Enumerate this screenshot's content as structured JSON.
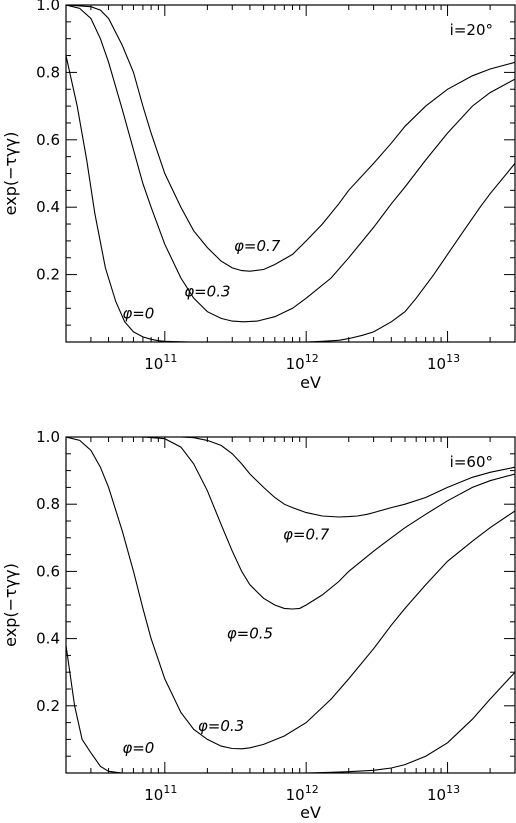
{
  "chart_data": [
    {
      "type": "line",
      "panel": "top",
      "annotation": "i=20°",
      "xlabel": "eV",
      "ylabel": "exp(−τγγ)",
      "xscale": "log",
      "xlim": [
        20000000000.0,
        30000000000000.0
      ],
      "ylim": [
        0,
        1.0
      ],
      "xticks_major": [
        100000000000.0,
        1000000000000.0,
        10000000000000.0
      ],
      "xtick_labels": [
        {
          "base": "10",
          "exp": "11"
        },
        {
          "base": "10",
          "exp": "12"
        },
        {
          "base": "10",
          "exp": "13"
        }
      ],
      "yticks": [
        0.2,
        0.4,
        0.6,
        0.8,
        1.0
      ],
      "ytick_labels": [
        "0.2",
        "0.4",
        "0.6",
        "0.8",
        "1.0"
      ],
      "series": [
        {
          "name": "φ=0",
          "x": [
            20000000000.0,
            24000000000.0,
            28000000000.0,
            32000000000.0,
            38000000000.0,
            45000000000.0,
            52000000000.0,
            60000000000.0,
            70000000000.0,
            80000000000.0,
            90000000000.0,
            100000000000.0,
            120000000000.0,
            150000000000.0,
            200000000000.0,
            300000000000.0
          ],
          "y": [
            0.85,
            0.7,
            0.54,
            0.38,
            0.22,
            0.12,
            0.06,
            0.03,
            0.015,
            0.008,
            0.004,
            0.002,
            0.001,
            0.0,
            0.0,
            0.0
          ]
        },
        {
          "name": "φ=0.3",
          "x": [
            20000000000.0,
            25000000000.0,
            30000000000.0,
            35000000000.0,
            40000000000.0,
            50000000000.0,
            60000000000.0,
            70000000000.0,
            80000000000.0,
            100000000000.0,
            130000000000.0,
            160000000000.0,
            200000000000.0,
            250000000000.0,
            300000000000.0,
            360000000000.0,
            450000000000.0,
            600000000000.0,
            800000000000.0,
            1000000000000.0,
            1500000000000.0,
            2000000000000.0,
            3000000000000.0,
            4000000000000.0,
            5000000000000.0,
            7000000000000.0,
            10000000000000.0,
            15000000000000.0,
            20000000000000.0,
            30000000000000.0
          ],
          "y": [
            1.0,
            0.99,
            0.96,
            0.9,
            0.83,
            0.69,
            0.57,
            0.47,
            0.4,
            0.29,
            0.19,
            0.13,
            0.09,
            0.07,
            0.062,
            0.06,
            0.062,
            0.075,
            0.1,
            0.13,
            0.19,
            0.25,
            0.34,
            0.41,
            0.46,
            0.54,
            0.62,
            0.7,
            0.74,
            0.78
          ]
        },
        {
          "name": "φ=0.7",
          "x": [
            20000000000.0,
            30000000000.0,
            35000000000.0,
            40000000000.0,
            50000000000.0,
            60000000000.0,
            70000000000.0,
            80000000000.0,
            100000000000.0,
            130000000000.0,
            160000000000.0,
            200000000000.0,
            250000000000.0,
            300000000000.0,
            350000000000.0,
            400000000000.0,
            500000000000.0,
            600000000000.0,
            800000000000.0,
            1000000000000.0,
            1300000000000.0,
            1700000000000.0,
            2000000000000.0,
            3000000000000.0,
            4000000000000.0,
            5000000000000.0,
            7000000000000.0,
            10000000000000.0,
            15000000000000.0,
            20000000000000.0,
            30000000000000.0
          ],
          "y": [
            1.0,
            0.995,
            0.985,
            0.96,
            0.88,
            0.8,
            0.7,
            0.62,
            0.5,
            0.4,
            0.33,
            0.28,
            0.24,
            0.22,
            0.212,
            0.21,
            0.215,
            0.23,
            0.26,
            0.3,
            0.35,
            0.41,
            0.45,
            0.53,
            0.59,
            0.64,
            0.7,
            0.75,
            0.79,
            0.81,
            0.83
          ]
        },
        {
          "name": "",
          "x": [
            1000000000000.0,
            1300000000000.0,
            1700000000000.0,
            2000000000000.0,
            2500000000000.0,
            3000000000000.0,
            4000000000000.0,
            5000000000000.0,
            6000000000000.0,
            8000000000000.0,
            10000000000000.0,
            13000000000000.0,
            17000000000000.0,
            20000000000000.0,
            30000000000000.0
          ],
          "y": [
            0.0,
            0.002,
            0.005,
            0.01,
            0.02,
            0.03,
            0.06,
            0.09,
            0.13,
            0.2,
            0.26,
            0.33,
            0.4,
            0.44,
            0.53
          ]
        }
      ],
      "labels": [
        {
          "text": "φ=0",
          "x": 65000000000.0,
          "y": 0.085
        },
        {
          "text": "φ=0.3",
          "x": 200000000000.0,
          "y": 0.15
        },
        {
          "text": "φ=0.7",
          "x": 450000000000.0,
          "y": 0.285
        }
      ]
    },
    {
      "type": "line",
      "panel": "bottom",
      "annotation": "i=60°",
      "xlabel": "eV",
      "ylabel": "exp(−τγγ)",
      "xscale": "log",
      "xlim": [
        20000000000.0,
        30000000000000.0
      ],
      "ylim": [
        0,
        1.0
      ],
      "xticks_major": [
        100000000000.0,
        1000000000000.0,
        10000000000000.0
      ],
      "xtick_labels": [
        {
          "base": "10",
          "exp": "11"
        },
        {
          "base": "10",
          "exp": "12"
        },
        {
          "base": "10",
          "exp": "13"
        }
      ],
      "yticks": [
        0.2,
        0.4,
        0.6,
        0.8,
        1.0
      ],
      "ytick_labels": [
        "0.2",
        "0.4",
        "0.6",
        "0.8",
        "1.0"
      ],
      "series": [
        {
          "name": "φ=0",
          "x": [
            20000000000.0,
            23000000000.0,
            26000000000.0,
            30000000000.0,
            35000000000.0,
            40000000000.0,
            50000000000.0
          ],
          "y": [
            0.38,
            0.2,
            0.1,
            0.06,
            0.02,
            0.005,
            0.0
          ]
        },
        {
          "name": "φ=0.3",
          "x": [
            20000000000.0,
            25000000000.0,
            30000000000.0,
            35000000000.0,
            40000000000.0,
            50000000000.0,
            60000000000.0,
            70000000000.0,
            80000000000.0,
            100000000000.0,
            130000000000.0,
            160000000000.0,
            200000000000.0,
            250000000000.0,
            300000000000.0,
            350000000000.0,
            400000000000.0,
            500000000000.0,
            700000000000.0,
            1000000000000.0,
            1500000000000.0,
            2000000000000.0,
            3000000000000.0,
            4000000000000.0,
            5000000000000.0,
            7000000000000.0,
            10000000000000.0,
            15000000000000.0,
            20000000000000.0,
            30000000000000.0
          ],
          "y": [
            1.0,
            0.99,
            0.96,
            0.91,
            0.85,
            0.72,
            0.6,
            0.49,
            0.4,
            0.28,
            0.18,
            0.13,
            0.1,
            0.08,
            0.073,
            0.072,
            0.075,
            0.085,
            0.11,
            0.15,
            0.22,
            0.28,
            0.37,
            0.44,
            0.49,
            0.56,
            0.63,
            0.69,
            0.73,
            0.78
          ]
        },
        {
          "name": "φ=0.5",
          "x": [
            70000000000.0,
            100000000000.0,
            130000000000.0,
            160000000000.0,
            200000000000.0,
            250000000000.0,
            300000000000.0,
            350000000000.0,
            400000000000.0,
            500000000000.0,
            600000000000.0,
            700000000000.0,
            800000000000.0,
            900000000000.0,
            1000000000000.0,
            1300000000000.0,
            1700000000000.0,
            2000000000000.0,
            3000000000000.0,
            4000000000000.0,
            5000000000000.0,
            7000000000000.0,
            10000000000000.0,
            15000000000000.0,
            20000000000000.0,
            30000000000000.0
          ],
          "y": [
            1.0,
            0.995,
            0.97,
            0.92,
            0.84,
            0.74,
            0.66,
            0.6,
            0.56,
            0.52,
            0.5,
            0.49,
            0.488,
            0.49,
            0.5,
            0.53,
            0.57,
            0.6,
            0.66,
            0.7,
            0.73,
            0.77,
            0.81,
            0.85,
            0.87,
            0.89
          ]
        },
        {
          "name": "φ=0.7",
          "x": [
            100000000000.0,
            130000000000.0,
            160000000000.0,
            200000000000.0,
            250000000000.0,
            300000000000.0,
            350000000000.0,
            400000000000.0,
            500000000000.0,
            600000000000.0,
            700000000000.0,
            800000000000.0,
            1000000000000.0,
            1300000000000.0,
            1700000000000.0,
            2000000000000.0,
            2300000000000.0,
            2700000000000.0,
            3000000000000.0,
            4000000000000.0,
            5000000000000.0,
            7000000000000.0,
            10000000000000.0,
            15000000000000.0,
            20000000000000.0,
            30000000000000.0
          ],
          "y": [
            1.0,
            1.0,
            0.998,
            0.99,
            0.975,
            0.95,
            0.92,
            0.89,
            0.85,
            0.82,
            0.8,
            0.79,
            0.775,
            0.765,
            0.762,
            0.763,
            0.765,
            0.77,
            0.775,
            0.79,
            0.8,
            0.82,
            0.85,
            0.88,
            0.895,
            0.91
          ]
        },
        {
          "name": "",
          "x": [
            1000000000000.0,
            1500000000000.0,
            2000000000000.0,
            3000000000000.0,
            4000000000000.0,
            5000000000000.0,
            7000000000000.0,
            10000000000000.0,
            15000000000000.0,
            20000000000000.0,
            30000000000000.0
          ],
          "y": [
            0.0,
            0.002,
            0.004,
            0.008,
            0.015,
            0.025,
            0.05,
            0.09,
            0.16,
            0.22,
            0.3
          ]
        }
      ],
      "labels": [
        {
          "text": "φ=0",
          "x": 65000000000.0,
          "y": 0.075
        },
        {
          "text": "φ=0.3",
          "x": 250000000000.0,
          "y": 0.14
        },
        {
          "text": "φ=0.5",
          "x": 400000000000.0,
          "y": 0.415
        },
        {
          "text": "φ=0.7",
          "x": 1000000000000.0,
          "y": 0.71
        }
      ]
    }
  ]
}
